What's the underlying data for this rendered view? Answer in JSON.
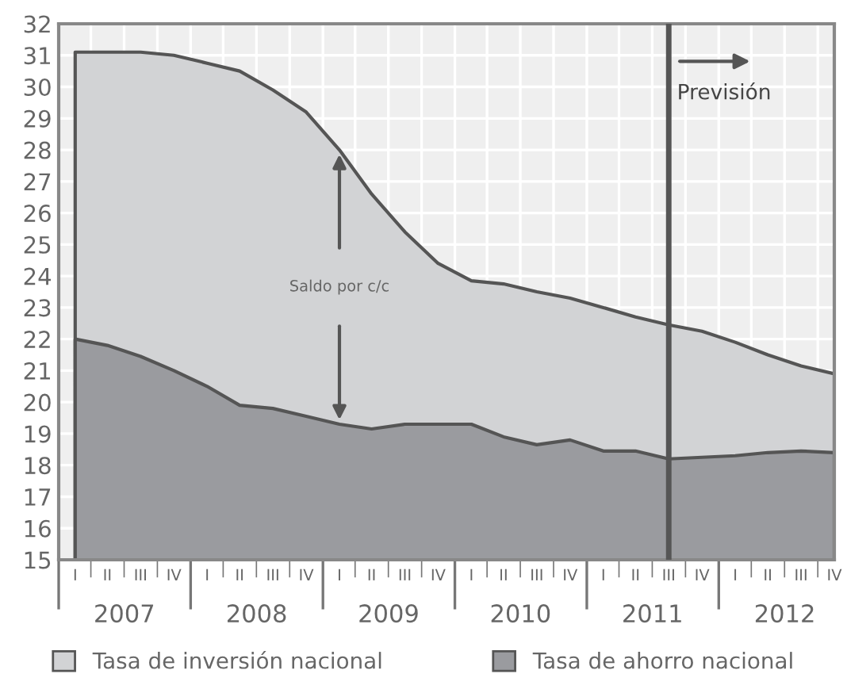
{
  "chart_data": {
    "type": "area",
    "x": [
      "2007-02-15",
      "2007-05-15",
      "2007-08-15",
      "2007-11-15",
      "2008-02-15",
      "2008-05-15",
      "2008-08-15",
      "2008-11-15",
      "2009-02-15",
      "2009-05-15",
      "2009-08-15",
      "2009-11-15",
      "2010-02-15",
      "2010-05-15",
      "2010-08-15",
      "2010-11-15",
      "2011-02-15",
      "2011-05-15",
      "2011-08-15",
      "2011-11-15",
      "2012-02-15",
      "2012-05-15",
      "2012-08-15",
      "2012-11-15"
    ],
    "xlim": [
      "2007-01-01",
      "2012-11-15"
    ],
    "xticks": [
      {
        "value": "2007-07-01",
        "label": "2007"
      },
      {
        "value": "2008-07-01",
        "label": "2008"
      },
      {
        "value": "2009-07-01",
        "label": "2009"
      },
      {
        "value": "2010-07-01",
        "label": "2010"
      },
      {
        "value": "2011-07-01",
        "label": "2011"
      },
      {
        "value": "2012-07-01",
        "label": "2012"
      }
    ],
    "series": [
      {
        "name": "Tasa de inversión nacional",
        "color": "#d2d3d5",
        "values": [
          31.1,
          31.1,
          31.1,
          31.0,
          30.75,
          30.5,
          29.9,
          29.2,
          28.0,
          26.6,
          25.4,
          24.4,
          23.85,
          23.75,
          23.5,
          23.3,
          23.0,
          22.7,
          22.45,
          22.25,
          21.9,
          21.5,
          21.15,
          20.9
        ]
      },
      {
        "name": "Tasa de ahorro nacional",
        "color": "#9a9b9f",
        "values": [
          22.0,
          21.8,
          21.45,
          21.0,
          20.5,
          19.9,
          19.8,
          19.55,
          19.3,
          19.15,
          19.3,
          19.3,
          19.3,
          18.9,
          18.65,
          18.8,
          18.45,
          18.45,
          18.2,
          18.25,
          18.3,
          18.4,
          18.45,
          18.4
        ]
      }
    ],
    "ylim": [
      15,
      32
    ],
    "yticks": [
      15,
      16,
      17,
      18,
      19,
      20,
      21,
      22,
      23,
      24,
      25,
      26,
      27,
      28,
      29,
      30,
      31,
      32
    ],
    "grid": true,
    "legend": "bottom",
    "ref_lines": [
      {
        "axis": "x",
        "value": "2011-08-15",
        "label": "Previsión",
        "color": "#555555"
      }
    ],
    "annotations": [
      "Saldo por c/c",
      "I",
      "II",
      "III",
      "IV",
      "I",
      "II",
      "III",
      "IV",
      "I",
      "II",
      "III",
      "IV",
      "I",
      "II",
      "III",
      "IV",
      "I",
      "II",
      "III",
      "IV",
      "I",
      "II",
      "III",
      "IV"
    ]
  }
}
